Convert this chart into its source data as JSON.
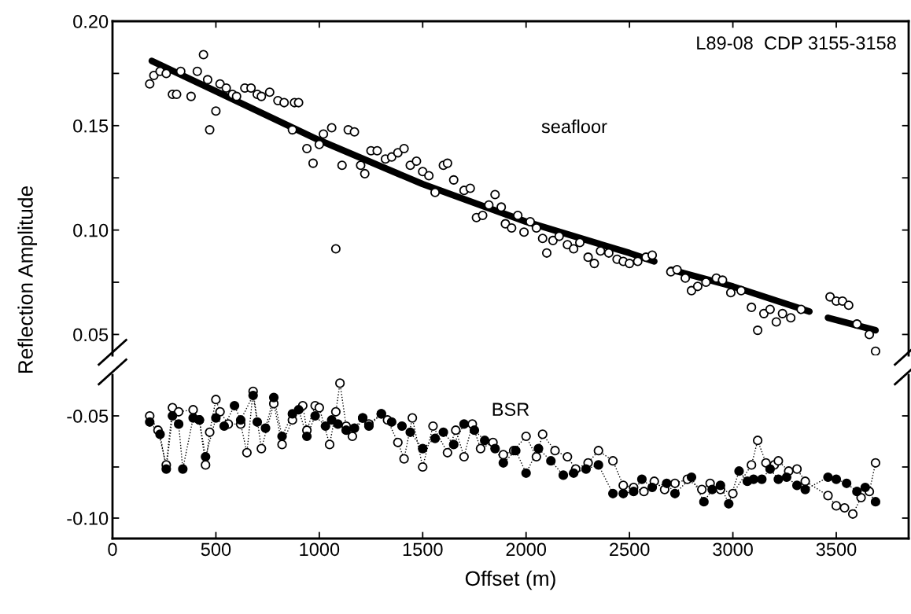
{
  "chart_data": [
    {
      "type": "scatter",
      "annotations": [
        "L89-08  CDP 3155-3158",
        "seafloor"
      ],
      "ylabel": "Reflection Amplitude",
      "xlim": [
        0,
        3850
      ],
      "xticks": [
        0,
        500,
        1000,
        1500,
        2000,
        2500,
        3000,
        3500
      ],
      "ylim": [
        0.04,
        0.2
      ],
      "yticks": [
        {
          "value": 0.05,
          "label": "0.05"
        },
        {
          "value": 0.075,
          "label": null
        },
        {
          "value": 0.1,
          "label": "0.10"
        },
        {
          "value": 0.125,
          "label": null
        },
        {
          "value": 0.15,
          "label": "0.15"
        },
        {
          "value": 0.175,
          "label": null
        },
        {
          "value": 0.2,
          "label": "0.20"
        }
      ],
      "tick_labels": "y",
      "grid": false,
      "legend": false,
      "series": [
        {
          "marker": "circle",
          "color": "#ffffff",
          "x": [
            180,
            200,
            230,
            260,
            290,
            310,
            330,
            380,
            410,
            440,
            460,
            470,
            500,
            520,
            550,
            580,
            600,
            640,
            670,
            700,
            720,
            760,
            800,
            830,
            870,
            880,
            900,
            940,
            970,
            1000,
            1020,
            1060,
            1080,
            1110,
            1140,
            1170,
            1200,
            1220,
            1250,
            1280,
            1320,
            1350,
            1380,
            1410,
            1440,
            1470,
            1500,
            1530,
            1560,
            1600,
            1620,
            1650,
            1700,
            1730,
            1760,
            1790,
            1820,
            1850,
            1880,
            1900,
            1930,
            1960,
            1990,
            2020,
            2050,
            2080,
            2100,
            2130,
            2160,
            2200,
            2230,
            2260,
            2300,
            2330,
            2360,
            2400,
            2440,
            2470,
            2500,
            2540,
            2580,
            2610,
            2700,
            2730,
            2770,
            2800,
            2830,
            2870,
            2920,
            2950,
            2990,
            3040,
            3090,
            3120,
            3150,
            3180,
            3210,
            3240,
            3280,
            3330,
            3470,
            3500,
            3530,
            3560,
            3600,
            3660,
            3690
          ],
          "values": [
            0.17,
            0.174,
            0.176,
            0.175,
            0.165,
            0.165,
            0.176,
            0.164,
            0.176,
            0.184,
            0.172,
            0.148,
            0.157,
            0.17,
            0.168,
            0.165,
            0.164,
            0.168,
            0.168,
            0.165,
            0.164,
            0.166,
            0.162,
            0.161,
            0.148,
            0.161,
            0.161,
            0.139,
            0.132,
            0.141,
            0.146,
            0.149,
            0.091,
            0.131,
            0.148,
            0.147,
            0.131,
            0.127,
            0.138,
            0.138,
            0.134,
            0.135,
            0.137,
            0.139,
            0.131,
            0.133,
            0.128,
            0.126,
            0.118,
            0.131,
            0.132,
            0.124,
            0.119,
            0.12,
            0.106,
            0.107,
            0.112,
            0.117,
            0.111,
            0.103,
            0.101,
            0.107,
            0.099,
            0.104,
            0.101,
            0.096,
            0.089,
            0.095,
            0.097,
            0.093,
            0.091,
            0.094,
            0.087,
            0.084,
            0.09,
            0.089,
            0.086,
            0.085,
            0.084,
            0.085,
            0.087,
            0.088,
            0.08,
            0.081,
            0.077,
            0.071,
            0.073,
            0.075,
            0.077,
            0.076,
            0.07,
            0.071,
            0.063,
            0.052,
            0.06,
            0.062,
            0.056,
            0.06,
            0.058,
            0.062,
            0.068,
            0.066,
            0.066,
            0.064,
            0.055,
            0.05,
            0.042
          ]
        },
        {
          "type": "line",
          "marker": "none",
          "line_style": "solid",
          "color": "#000000",
          "x": [
            190,
            1000,
            1500,
            2000,
            2500,
            2620,
            2650,
            2700,
            3000,
            3370,
            3420,
            3460,
            3690
          ],
          "values": [
            0.181,
            0.143,
            0.122,
            0.104,
            0.089,
            0.085,
            null,
            0.081,
            0.073,
            0.061,
            null,
            0.058,
            0.052
          ]
        }
      ]
    },
    {
      "type": "line",
      "annotations": [
        "BSR"
      ],
      "xlabel": "Offset (m)",
      "xlim": [
        0,
        3850
      ],
      "xticks": [
        0,
        500,
        1000,
        1500,
        2000,
        2500,
        3000,
        3500
      ],
      "ylim": [
        -0.11,
        -0.03
      ],
      "yticks": [
        {
          "value": -0.1,
          "label": "-0.10"
        },
        {
          "value": -0.075,
          "label": null
        },
        {
          "value": -0.05,
          "label": "-0.05"
        }
      ],
      "grid": false,
      "legend": false,
      "series": [
        {
          "marker": "circle",
          "line_style": "dotted",
          "color": "#ffffff",
          "x": [
            180,
            220,
            260,
            290,
            320,
            390,
            420,
            450,
            470,
            500,
            520,
            560,
            620,
            650,
            680,
            720,
            780,
            820,
            870,
            920,
            940,
            980,
            1000,
            1050,
            1080,
            1100,
            1130,
            1160,
            1210,
            1240,
            1300,
            1330,
            1380,
            1410,
            1450,
            1500,
            1550,
            1620,
            1660,
            1700,
            1740,
            1780,
            1840,
            1890,
            1940,
            2000,
            2050,
            2080,
            2140,
            2200,
            2240,
            2300,
            2350,
            2420,
            2470,
            2520,
            2570,
            2620,
            2670,
            2720,
            2780,
            2850,
            2890,
            2940,
            3000,
            3090,
            3120,
            3160,
            3200,
            3220,
            3270,
            3310,
            3350,
            3460,
            3500,
            3540,
            3580,
            3620,
            3660,
            3690
          ],
          "values": [
            -0.05,
            -0.057,
            -0.074,
            -0.046,
            -0.048,
            -0.047,
            -0.052,
            -0.074,
            -0.058,
            -0.042,
            -0.048,
            -0.054,
            -0.054,
            -0.068,
            -0.038,
            -0.066,
            -0.044,
            -0.064,
            -0.052,
            -0.045,
            -0.057,
            -0.045,
            -0.046,
            -0.064,
            -0.048,
            -0.034,
            -0.055,
            -0.06,
            -0.051,
            -0.054,
            -0.049,
            -0.052,
            -0.063,
            -0.071,
            -0.051,
            -0.075,
            -0.055,
            -0.068,
            -0.057,
            -0.07,
            -0.054,
            -0.066,
            -0.063,
            -0.069,
            -0.067,
            -0.06,
            -0.07,
            -0.059,
            -0.067,
            -0.07,
            -0.076,
            -0.073,
            -0.067,
            -0.072,
            -0.084,
            -0.085,
            -0.087,
            -0.082,
            -0.086,
            -0.083,
            -0.081,
            -0.086,
            -0.083,
            -0.086,
            -0.088,
            -0.074,
            -0.062,
            -0.073,
            -0.074,
            -0.072,
            -0.077,
            -0.076,
            -0.082,
            -0.089,
            -0.094,
            -0.095,
            -0.098,
            -0.09,
            -0.087,
            -0.073
          ]
        },
        {
          "marker": "circle",
          "line_style": "dotted",
          "color": "#000000",
          "x": [
            180,
            230,
            260,
            290,
            320,
            340,
            390,
            420,
            450,
            500,
            540,
            590,
            620,
            680,
            700,
            740,
            780,
            820,
            870,
            900,
            940,
            980,
            1030,
            1060,
            1090,
            1130,
            1170,
            1210,
            1240,
            1300,
            1350,
            1400,
            1440,
            1500,
            1560,
            1600,
            1650,
            1700,
            1750,
            1800,
            1850,
            1890,
            1950,
            2000,
            2060,
            2120,
            2180,
            2230,
            2290,
            2350,
            2420,
            2470,
            2520,
            2560,
            2610,
            2680,
            2720,
            2800,
            2860,
            2900,
            2940,
            2980,
            3030,
            3070,
            3100,
            3140,
            3180,
            3220,
            3260,
            3310,
            3350,
            3460,
            3500,
            3550,
            3600,
            3640,
            3690
          ],
          "values": [
            -0.053,
            -0.059,
            -0.076,
            -0.05,
            -0.054,
            -0.076,
            -0.051,
            -0.052,
            -0.07,
            -0.051,
            -0.055,
            -0.045,
            -0.052,
            -0.04,
            -0.053,
            -0.056,
            -0.041,
            -0.06,
            -0.049,
            -0.047,
            -0.06,
            -0.05,
            -0.055,
            -0.052,
            -0.054,
            -0.057,
            -0.056,
            -0.051,
            -0.055,
            -0.049,
            -0.053,
            -0.055,
            -0.058,
            -0.066,
            -0.061,
            -0.058,
            -0.064,
            -0.054,
            -0.057,
            -0.062,
            -0.066,
            -0.073,
            -0.067,
            -0.078,
            -0.066,
            -0.072,
            -0.079,
            -0.078,
            -0.076,
            -0.074,
            -0.088,
            -0.088,
            -0.087,
            -0.081,
            -0.085,
            -0.083,
            -0.088,
            -0.08,
            -0.092,
            -0.086,
            -0.084,
            -0.093,
            -0.077,
            -0.082,
            -0.081,
            -0.081,
            -0.076,
            -0.081,
            -0.08,
            -0.084,
            -0.086,
            -0.08,
            -0.081,
            -0.083,
            -0.087,
            -0.085,
            -0.092
          ]
        }
      ]
    }
  ]
}
